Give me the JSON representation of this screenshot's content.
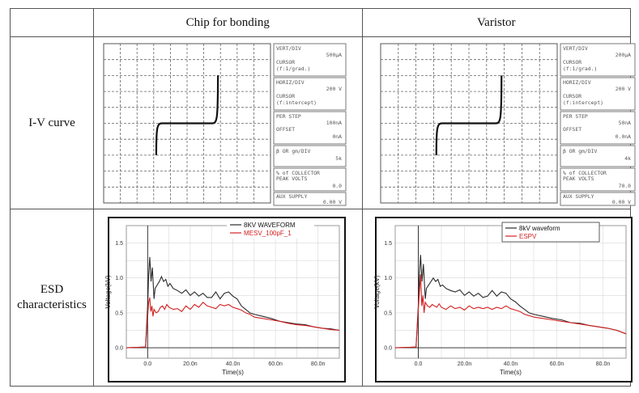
{
  "table": {
    "headers": [
      "",
      "Chip for bonding",
      "Varistor"
    ],
    "row_labels": {
      "iv": "I-V curve",
      "esd_line1": "ESD",
      "esd_line2": "characteristics"
    }
  },
  "iv_panels": [
    {
      "id": "chip",
      "readout": {
        "vert_div_label": "VERT/DIV",
        "vert_div_value": "500µA",
        "cursor1": "CURSOR",
        "cursor1_sub": "(f:1/grad.)",
        "horiz_div_label": "HORIZ/DIV",
        "horiz_div_value": "200 V",
        "cursor2": "CURSOR",
        "cursor2_sub": "(f:intercept)",
        "per_step_label": "PER STEP",
        "per_step_value": "100nA",
        "offset_label": "OFFSET",
        "offset_value": "0nA",
        "beta_label": "β OR gm/DIV",
        "beta_value": "5k",
        "collector_label1": "% of COLLECTOR",
        "collector_label2": "PEAK VOLTS",
        "collector_value": "0.0",
        "aux_label": "AUX SUPPLY",
        "aux_value": "0.00 V"
      }
    },
    {
      "id": "varistor",
      "readout": {
        "vert_div_label": "VERT/DIV",
        "vert_div_value": "200µA",
        "cursor1": "CURSOR",
        "cursor1_sub": "(f:1/grad.)",
        "horiz_div_label": "HORIZ/DIV",
        "horiz_div_value": "200 V",
        "cursor2": "CURSOR",
        "cursor2_sub": "(f:intercept)",
        "per_step_label": "PER STEP",
        "per_step_value": "50nA",
        "offset_label": "OFFSET",
        "offset_value": "0.0nA",
        "beta_label": "β OR gm/DIV",
        "beta_value": "4k",
        "collector_label1": "% of COLLECTOR",
        "collector_label2": "PEAK VOLTS",
        "collector_value": "70.0",
        "aux_label": "AUX SUPPLY",
        "aux_value": "0.00 V"
      }
    }
  ],
  "chart_data": [
    {
      "type": "line",
      "panel": "ESD characteristics - Chip for bonding",
      "xlabel": "Time(s)",
      "ylabel": "Voltage(kV)",
      "xlim": [
        -10,
        90
      ],
      "ylim": [
        -0.15,
        1.75
      ],
      "x_ticks": [
        "0.0",
        "20.0n",
        "40.0n",
        "60.0n",
        "80.0n"
      ],
      "x_tick_values": [
        0,
        20,
        40,
        60,
        80
      ],
      "y_ticks": [
        "0.0",
        "0.5",
        "1.0",
        "1.5"
      ],
      "y_tick_values": [
        0,
        0.5,
        1.0,
        1.5
      ],
      "legend_position": "top-right",
      "series": [
        {
          "name": "8KV WAVEFORM",
          "color": "#2a2a2a",
          "x": [
            -10,
            -1,
            0,
            0.5,
            1,
            1.6,
            2.2,
            3,
            3.5,
            4.5,
            5.5,
            6.5,
            7.5,
            8.5,
            9.5,
            10.5,
            12,
            14,
            16,
            18,
            20,
            22,
            24,
            26,
            28,
            30,
            32,
            34,
            36,
            38,
            40,
            42,
            44,
            46,
            48,
            50,
            54,
            58,
            62,
            66,
            70,
            74,
            78,
            82,
            86,
            90
          ],
          "y": [
            0,
            0.01,
            0.6,
            1.05,
            1.3,
            0.95,
            1.15,
            0.7,
            0.85,
            0.9,
            0.95,
            1.02,
            0.95,
            0.98,
            0.88,
            0.92,
            0.85,
            0.82,
            0.78,
            0.83,
            0.75,
            0.8,
            0.74,
            0.78,
            0.72,
            0.72,
            0.8,
            0.7,
            0.78,
            0.8,
            0.74,
            0.7,
            0.6,
            0.55,
            0.5,
            0.48,
            0.45,
            0.42,
            0.38,
            0.36,
            0.34,
            0.33,
            0.3,
            0.28,
            0.27,
            0.25
          ]
        },
        {
          "name": "MESV_100pF_1",
          "color": "#d42020",
          "x": [
            -10,
            -1,
            0,
            0.5,
            1,
            1.5,
            2,
            2.5,
            3,
            4,
            5,
            6,
            7,
            8,
            9,
            10,
            12,
            14,
            16,
            18,
            20,
            22,
            24,
            26,
            28,
            30,
            32,
            34,
            36,
            38,
            40,
            42,
            44,
            46,
            48,
            50,
            54,
            58,
            62,
            66,
            70,
            74,
            78,
            82,
            86,
            90
          ],
          "y": [
            0,
            0.01,
            0.45,
            0.65,
            0.72,
            0.52,
            0.6,
            0.45,
            0.55,
            0.5,
            0.52,
            0.58,
            0.6,
            0.55,
            0.62,
            0.58,
            0.55,
            0.56,
            0.52,
            0.6,
            0.55,
            0.62,
            0.58,
            0.65,
            0.6,
            0.58,
            0.56,
            0.62,
            0.6,
            0.62,
            0.58,
            0.56,
            0.54,
            0.5,
            0.48,
            0.44,
            0.42,
            0.4,
            0.38,
            0.35,
            0.33,
            0.32,
            0.3,
            0.28,
            0.26,
            0.25
          ]
        }
      ]
    },
    {
      "type": "line",
      "panel": "ESD characteristics - Varistor",
      "xlabel": "Time(s)",
      "ylabel": "Voltage(kV)",
      "xlim": [
        -10,
        90
      ],
      "ylim": [
        -0.15,
        1.75
      ],
      "x_ticks": [
        "0.0",
        "20.0n",
        "40.0n",
        "60.0n",
        "80.0n"
      ],
      "x_tick_values": [
        0,
        20,
        40,
        60,
        80
      ],
      "y_ticks": [
        "0.0",
        "0.5",
        "1.0",
        "1.5"
      ],
      "y_tick_values": [
        0,
        0.5,
        1.0,
        1.5
      ],
      "legend_position": "top-right",
      "series": [
        {
          "name": "8kV waveform",
          "color": "#2a2a2a",
          "x": [
            -10,
            -1,
            0,
            0.5,
            1,
            1.6,
            2.2,
            3,
            3.5,
            4.5,
            5.5,
            6.5,
            7.5,
            8.5,
            9.5,
            10.5,
            12,
            14,
            16,
            18,
            20,
            22,
            24,
            26,
            28,
            30,
            32,
            34,
            36,
            38,
            40,
            42,
            44,
            46,
            48,
            50,
            54,
            58,
            62,
            66,
            70,
            74,
            78,
            82,
            86,
            90
          ],
          "y": [
            0,
            0.01,
            0.6,
            1.05,
            1.33,
            0.95,
            1.2,
            0.7,
            0.85,
            0.9,
            0.95,
            1.0,
            0.95,
            0.98,
            0.88,
            0.9,
            0.85,
            0.82,
            0.8,
            0.83,
            0.75,
            0.8,
            0.74,
            0.78,
            0.72,
            0.74,
            0.82,
            0.74,
            0.8,
            0.78,
            0.7,
            0.66,
            0.6,
            0.55,
            0.5,
            0.48,
            0.45,
            0.42,
            0.4,
            0.36,
            0.35,
            0.32,
            0.3,
            0.28,
            0.25,
            0.2
          ]
        },
        {
          "name": "ESPV",
          "color": "#d42020",
          "x": [
            -10,
            -1,
            0,
            0.5,
            1,
            1.5,
            2,
            2.5,
            3,
            4,
            5,
            6,
            7,
            8,
            9,
            10,
            12,
            14,
            16,
            18,
            20,
            22,
            24,
            26,
            28,
            30,
            32,
            34,
            36,
            38,
            40,
            42,
            44,
            46,
            48,
            50,
            54,
            58,
            62,
            66,
            70,
            74,
            78,
            82,
            86,
            90
          ],
          "y": [
            0,
            0.01,
            0.55,
            0.8,
            1.05,
            0.6,
            0.75,
            0.5,
            0.65,
            0.6,
            0.58,
            0.62,
            0.6,
            0.58,
            0.63,
            0.58,
            0.55,
            0.6,
            0.56,
            0.58,
            0.54,
            0.6,
            0.56,
            0.58,
            0.56,
            0.58,
            0.55,
            0.58,
            0.56,
            0.6,
            0.56,
            0.54,
            0.52,
            0.48,
            0.46,
            0.44,
            0.42,
            0.4,
            0.38,
            0.36,
            0.34,
            0.32,
            0.3,
            0.28,
            0.25,
            0.2
          ]
        }
      ]
    }
  ]
}
